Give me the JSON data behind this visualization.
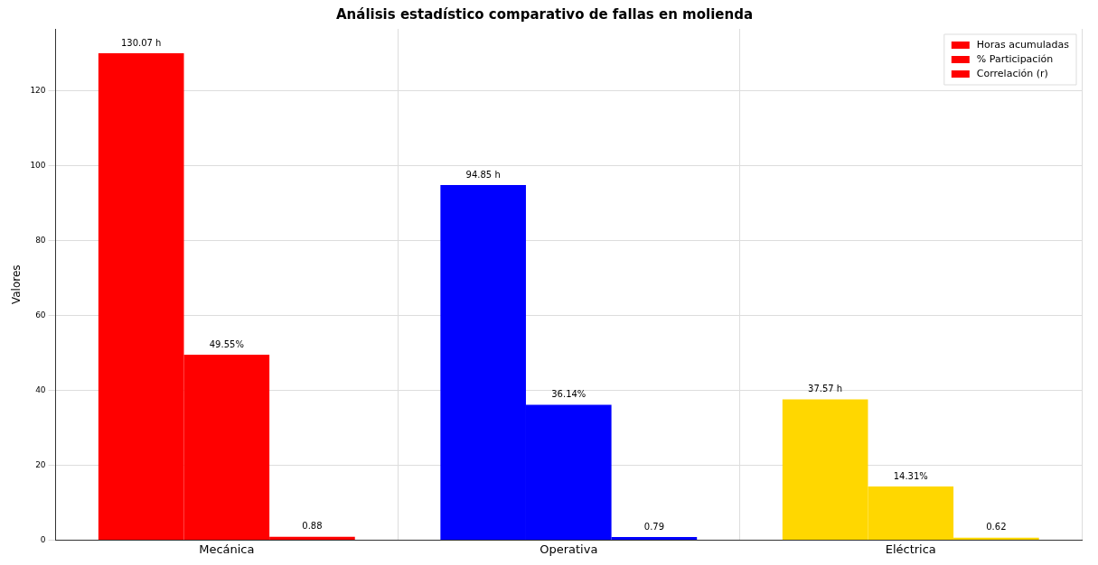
{
  "chart_data": {
    "type": "bar",
    "title": "Análisis estadístico comparativo de fallas en molienda",
    "ylabel": "Valores",
    "categories": [
      "Mecánica",
      "Operativa",
      "Eléctrica"
    ],
    "series": [
      {
        "name": "Horas acumuladas",
        "colors": [
          "#ff0000",
          "#0000ff",
          "#ffd700"
        ],
        "values": [
          130.07,
          94.85,
          37.57
        ],
        "value_labels": [
          "130.07 h",
          "94.85 h",
          "37.57 h"
        ]
      },
      {
        "name": "% Participación",
        "colors": [
          "#ff0000",
          "#0000ff",
          "#ffd700"
        ],
        "values": [
          49.55,
          36.14,
          14.31
        ],
        "value_labels": [
          "49.55%",
          "36.14%",
          "14.31%"
        ]
      },
      {
        "name": "Correlación (r)",
        "colors": [
          "#ff0000",
          "#0000ff",
          "#ffd700"
        ],
        "values": [
          0.88,
          0.79,
          0.62
        ],
        "value_labels": [
          "0.88",
          "0.79",
          "0.62"
        ]
      }
    ],
    "ylim": [
      0,
      136.6
    ],
    "yticks": [
      0,
      20,
      40,
      60,
      80,
      100,
      120
    ],
    "grid": true,
    "legend": "top right"
  }
}
